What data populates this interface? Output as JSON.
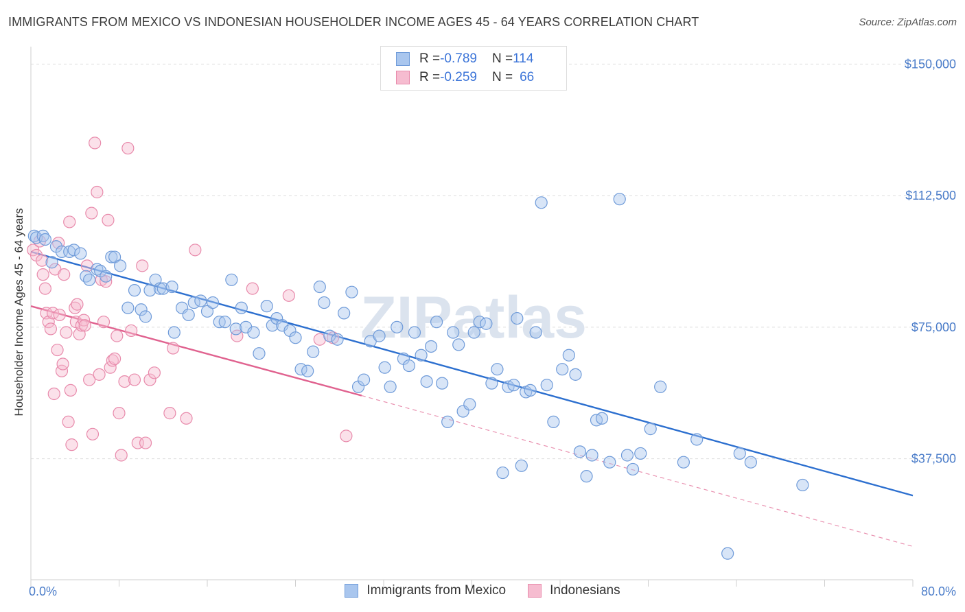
{
  "header": {
    "title": "IMMIGRANTS FROM MEXICO VS INDONESIAN HOUSEHOLDER INCOME AGES 45 - 64 YEARS CORRELATION CHART",
    "source": "Source: ZipAtlas.com"
  },
  "watermark": "ZIPatlas",
  "legend_top": {
    "rows": [
      {
        "r_label": "R = ",
        "r_value": "-0.789",
        "n_label": "N = ",
        "n_value": "114"
      },
      {
        "r_label": "R = ",
        "r_value": "-0.259",
        "n_label": "N = ",
        "n_value": "66"
      }
    ]
  },
  "colors": {
    "blue_fill": "#a9c6ee",
    "blue_stroke": "#6f9bd9",
    "blue_line": "#2c6fcf",
    "pink_fill": "#f6bcd0",
    "pink_stroke": "#e88aab",
    "pink_line": "#e0628f",
    "tick_text": "#4a7cc9",
    "grid": "#dddddd"
  },
  "chart_data": {
    "type": "scatter",
    "title": "IMMIGRANTS FROM MEXICO VS INDONESIAN HOUSEHOLDER INCOME AGES 45 - 64 YEARS CORRELATION CHART",
    "xlabel": "",
    "ylabel": "Householder Income Ages 45 - 64 years",
    "xlim": [
      0,
      80
    ],
    "ylim": [
      3000,
      153000
    ],
    "x_tick_labels": [
      "0.0%",
      "80.0%"
    ],
    "y_ticks": [
      37500,
      75000,
      112500,
      150000
    ],
    "y_tick_labels": [
      "$37,500",
      "$75,000",
      "$112,500",
      "$150,000"
    ],
    "grid": true,
    "legend_placement": "bottom",
    "series": [
      {
        "name": "Immigrants from Mexico",
        "color": "#6f9bd9",
        "r": -0.789,
        "n": 114,
        "trend": {
          "x": [
            0,
            80
          ],
          "y": [
            96500,
            27000
          ]
        },
        "points": [
          [
            0.3,
            101000
          ],
          [
            0.5,
            100500
          ],
          [
            1.1,
            101000
          ],
          [
            1.3,
            100000
          ],
          [
            1.9,
            93500
          ],
          [
            2.3,
            98000
          ],
          [
            2.8,
            96500
          ],
          [
            3.5,
            96500
          ],
          [
            3.9,
            97000
          ],
          [
            4.5,
            96000
          ],
          [
            5.0,
            89500
          ],
          [
            5.3,
            88500
          ],
          [
            6.0,
            91500
          ],
          [
            6.3,
            91000
          ],
          [
            6.8,
            89500
          ],
          [
            7.3,
            95000
          ],
          [
            7.6,
            95000
          ],
          [
            8.1,
            92500
          ],
          [
            8.8,
            80500
          ],
          [
            9.4,
            85500
          ],
          [
            10.0,
            80000
          ],
          [
            10.4,
            78000
          ],
          [
            10.8,
            85500
          ],
          [
            11.3,
            88500
          ],
          [
            11.7,
            86000
          ],
          [
            12.0,
            86000
          ],
          [
            12.8,
            86500
          ],
          [
            13.0,
            73500
          ],
          [
            13.7,
            80500
          ],
          [
            14.3,
            78500
          ],
          [
            14.8,
            82000
          ],
          [
            15.4,
            82500
          ],
          [
            16.0,
            79500
          ],
          [
            16.5,
            82000
          ],
          [
            17.1,
            76500
          ],
          [
            17.6,
            76500
          ],
          [
            18.2,
            88500
          ],
          [
            18.6,
            74500
          ],
          [
            19.1,
            80500
          ],
          [
            19.5,
            75000
          ],
          [
            20.2,
            73500
          ],
          [
            20.7,
            67500
          ],
          [
            21.4,
            81000
          ],
          [
            21.9,
            75500
          ],
          [
            22.3,
            77500
          ],
          [
            22.8,
            75500
          ],
          [
            23.5,
            74000
          ],
          [
            24.0,
            72000
          ],
          [
            24.5,
            63000
          ],
          [
            25.1,
            62500
          ],
          [
            25.6,
            68000
          ],
          [
            26.2,
            86500
          ],
          [
            26.6,
            82000
          ],
          [
            27.1,
            72500
          ],
          [
            27.8,
            71500
          ],
          [
            28.4,
            79000
          ],
          [
            29.1,
            85000
          ],
          [
            29.7,
            58000
          ],
          [
            30.2,
            60000
          ],
          [
            30.8,
            71000
          ],
          [
            31.6,
            72500
          ],
          [
            32.1,
            63500
          ],
          [
            32.6,
            58000
          ],
          [
            33.2,
            75000
          ],
          [
            33.8,
            66000
          ],
          [
            34.3,
            64000
          ],
          [
            34.8,
            73500
          ],
          [
            35.4,
            67000
          ],
          [
            35.9,
            59500
          ],
          [
            36.3,
            69500
          ],
          [
            36.8,
            76500
          ],
          [
            37.3,
            59000
          ],
          [
            37.8,
            48000
          ],
          [
            38.3,
            73500
          ],
          [
            38.8,
            70000
          ],
          [
            39.2,
            51000
          ],
          [
            39.8,
            53000
          ],
          [
            40.2,
            73500
          ],
          [
            40.7,
            76500
          ],
          [
            41.3,
            76000
          ],
          [
            41.8,
            59000
          ],
          [
            42.3,
            63000
          ],
          [
            42.8,
            33500
          ],
          [
            43.3,
            58000
          ],
          [
            43.8,
            58500
          ],
          [
            44.1,
            77500
          ],
          [
            44.5,
            35500
          ],
          [
            44.9,
            56500
          ],
          [
            45.3,
            57000
          ],
          [
            45.8,
            73500
          ],
          [
            46.3,
            110500
          ],
          [
            46.8,
            58500
          ],
          [
            47.4,
            48000
          ],
          [
            48.2,
            63000
          ],
          [
            48.8,
            67000
          ],
          [
            49.4,
            61500
          ],
          [
            49.8,
            39500
          ],
          [
            50.4,
            32500
          ],
          [
            50.9,
            38500
          ],
          [
            51.3,
            48500
          ],
          [
            51.8,
            49000
          ],
          [
            52.5,
            36500
          ],
          [
            53.4,
            111500
          ],
          [
            54.1,
            38500
          ],
          [
            54.6,
            34500
          ],
          [
            55.3,
            39000
          ],
          [
            56.2,
            46000
          ],
          [
            57.1,
            58000
          ],
          [
            59.2,
            36500
          ],
          [
            60.4,
            43000
          ],
          [
            64.3,
            39000
          ],
          [
            65.3,
            36500
          ],
          [
            63.2,
            10500
          ],
          [
            70.0,
            30000
          ]
        ]
      },
      {
        "name": "Indonesians",
        "color": "#e88aab",
        "r": -0.259,
        "n": 66,
        "trend": {
          "x": [
            0,
            30
          ],
          "y": [
            81000,
            55500
          ]
        },
        "trend_extension": {
          "x": [
            30,
            80
          ],
          "y": [
            55500,
            12500
          ]
        },
        "points": [
          [
            0.2,
            97000
          ],
          [
            0.5,
            95500
          ],
          [
            0.8,
            99500
          ],
          [
            1.0,
            94000
          ],
          [
            1.1,
            90000
          ],
          [
            1.3,
            86000
          ],
          [
            1.4,
            79000
          ],
          [
            1.6,
            76500
          ],
          [
            1.8,
            74500
          ],
          [
            2.0,
            79000
          ],
          [
            2.1,
            56000
          ],
          [
            2.2,
            91500
          ],
          [
            2.4,
            68500
          ],
          [
            2.5,
            99000
          ],
          [
            2.6,
            78500
          ],
          [
            2.8,
            62500
          ],
          [
            2.9,
            64500
          ],
          [
            3.0,
            90000
          ],
          [
            3.2,
            73500
          ],
          [
            3.4,
            48000
          ],
          [
            3.5,
            105000
          ],
          [
            3.6,
            57000
          ],
          [
            3.7,
            41500
          ],
          [
            4.0,
            80500
          ],
          [
            4.1,
            76500
          ],
          [
            4.2,
            81500
          ],
          [
            4.4,
            73000
          ],
          [
            4.6,
            75500
          ],
          [
            4.8,
            77000
          ],
          [
            4.9,
            75500
          ],
          [
            5.1,
            92500
          ],
          [
            5.3,
            60000
          ],
          [
            5.5,
            107500
          ],
          [
            5.6,
            44500
          ],
          [
            5.8,
            127500
          ],
          [
            6.0,
            113500
          ],
          [
            6.2,
            61500
          ],
          [
            6.4,
            88500
          ],
          [
            6.6,
            76500
          ],
          [
            6.8,
            88000
          ],
          [
            7.0,
            105500
          ],
          [
            7.2,
            63500
          ],
          [
            7.4,
            65500
          ],
          [
            7.6,
            66000
          ],
          [
            7.8,
            72500
          ],
          [
            8.0,
            50500
          ],
          [
            8.2,
            38500
          ],
          [
            8.5,
            59500
          ],
          [
            8.8,
            126000
          ],
          [
            9.1,
            74000
          ],
          [
            9.4,
            60000
          ],
          [
            9.7,
            42000
          ],
          [
            10.1,
            92500
          ],
          [
            10.4,
            42000
          ],
          [
            10.8,
            60000
          ],
          [
            11.2,
            62000
          ],
          [
            12.6,
            50500
          ],
          [
            12.9,
            69000
          ],
          [
            14.1,
            49000
          ],
          [
            14.9,
            97000
          ],
          [
            18.7,
            72500
          ],
          [
            20.1,
            86000
          ],
          [
            23.4,
            84000
          ],
          [
            26.2,
            71500
          ],
          [
            27.4,
            72000
          ],
          [
            28.6,
            44000
          ]
        ]
      }
    ]
  },
  "legend_bottom": {
    "items": [
      {
        "label": "Immigrants from Mexico"
      },
      {
        "label": "Indonesians"
      }
    ]
  }
}
